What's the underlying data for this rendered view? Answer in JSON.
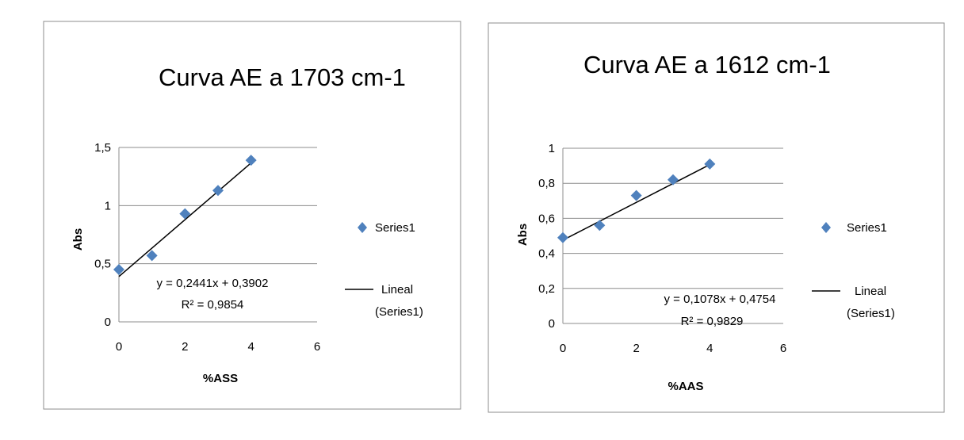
{
  "chart_data": [
    {
      "type": "scatter",
      "title": "Curva AE a 1703 cm-1",
      "xlabel": "%ASS",
      "ylabel": "Abs",
      "xlim": [
        0,
        6
      ],
      "ylim": [
        0,
        1.5
      ],
      "x_ticks": [
        "0",
        "2",
        "4",
        "6"
      ],
      "y_ticks": [
        "0",
        "0,5",
        "1",
        "1,5"
      ],
      "grid": true,
      "legend_position": "right",
      "series": [
        {
          "name": "Series1",
          "x": [
            0,
            1,
            2,
            3,
            4
          ],
          "y": [
            0.45,
            0.57,
            0.93,
            1.13,
            1.39
          ],
          "color": "#4f81bd"
        }
      ],
      "trendline": {
        "name": "Lineal (Series1)",
        "label_line1": "Lineal",
        "label_line2": "(Series1)",
        "slope": 0.2441,
        "intercept": 0.3902,
        "x_range": [
          0,
          4
        ],
        "color": "#000000"
      },
      "equation": "y = 0,2441x + 0,3902",
      "r2": "R² = 0,9854"
    },
    {
      "type": "scatter",
      "title": "Curva AE a 1612 cm-1",
      "xlabel": "%AAS",
      "ylabel": "Abs",
      "xlim": [
        0,
        6
      ],
      "ylim": [
        0,
        1
      ],
      "x_ticks": [
        "0",
        "2",
        "4",
        "6"
      ],
      "y_ticks": [
        "0",
        "0,2",
        "0,4",
        "0,6",
        "0,8",
        "1"
      ],
      "grid": true,
      "legend_position": "right",
      "series": [
        {
          "name": "Series1",
          "x": [
            0,
            1,
            2,
            3,
            4
          ],
          "y": [
            0.49,
            0.56,
            0.73,
            0.82,
            0.91
          ],
          "color": "#4f81bd"
        }
      ],
      "trendline": {
        "name": "Lineal (Series1)",
        "label_line1": "Lineal",
        "label_line2": "(Series1)",
        "slope": 0.1078,
        "intercept": 0.4754,
        "x_range": [
          0,
          4
        ],
        "color": "#000000"
      },
      "equation": "y = 0,1078x + 0,4754",
      "r2": "R² = 0,9829"
    }
  ]
}
